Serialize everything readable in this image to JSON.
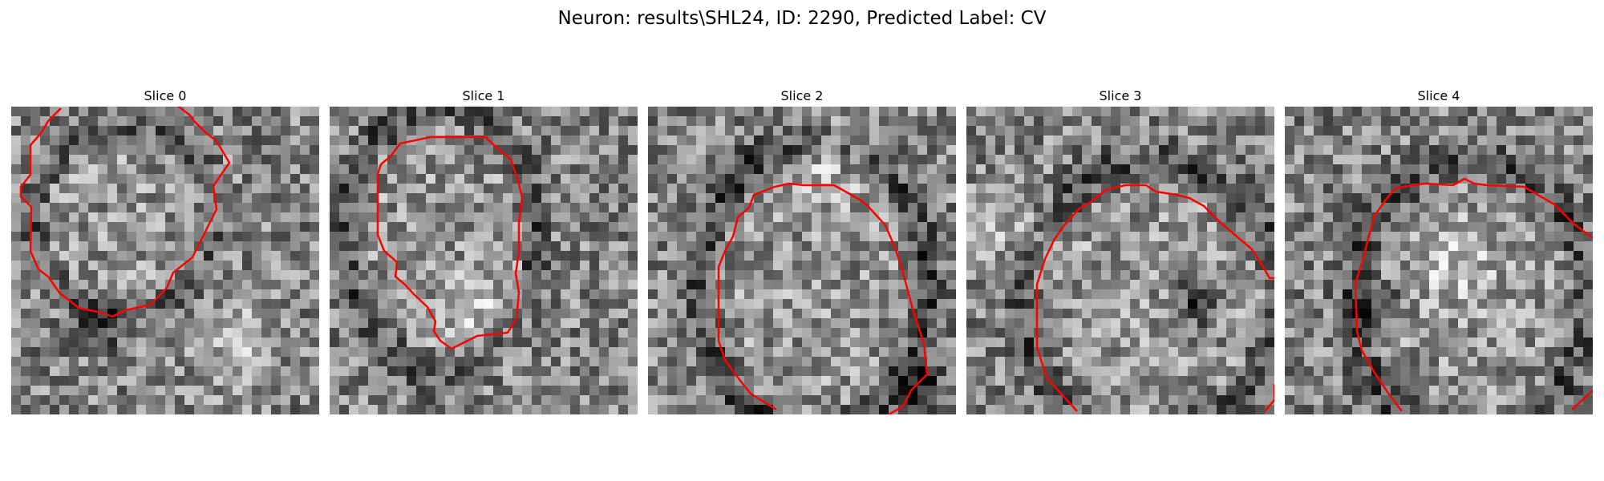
{
  "figure": {
    "title": "Neuron: results\\SHL24, ID: 2290, Predicted Label: CV",
    "contour_color": "#ff0000",
    "colormap": "gray",
    "panels": [
      {
        "title": "Slice 0",
        "seed": 11,
        "center": [
          0.37,
          0.37
        ],
        "radius": [
          0.3,
          0.3
        ],
        "cell_dark": false,
        "ring_strength": 0.55,
        "dark_spot": [
          0.28,
          0.7
        ],
        "bright_spot": [
          0.72,
          0.78
        ]
      },
      {
        "title": "Slice 1",
        "seed": 23,
        "center": [
          0.36,
          0.43
        ],
        "radius": [
          0.31,
          0.44
        ],
        "cell_dark": false,
        "ring_strength": 0.75,
        "dark_spot": null,
        "bright_spot": [
          0.5,
          0.7
        ]
      },
      {
        "title": "Slice 2",
        "seed": 37,
        "center": [
          0.54,
          0.59
        ],
        "radius": [
          0.37,
          0.48
        ],
        "cell_dark": false,
        "ring_strength": 0.85,
        "dark_spot": [
          0.88,
          0.9
        ],
        "bright_spot": [
          0.6,
          0.15
        ]
      },
      {
        "title": "Slice 3",
        "seed": 51,
        "center": [
          0.6,
          0.63
        ],
        "radius": [
          0.42,
          0.45
        ],
        "cell_dark": false,
        "ring_strength": 0.7,
        "dark_spot": [
          0.76,
          0.63
        ],
        "bright_spot": [
          0.15,
          0.4
        ]
      },
      {
        "title": "Slice 4",
        "seed": 67,
        "center": [
          0.6,
          0.63
        ],
        "radius": [
          0.38,
          0.45
        ],
        "cell_dark": false,
        "ring_strength": 0.75,
        "dark_spot": [
          0.3,
          0.65
        ],
        "bright_spot": [
          0.55,
          0.5
        ]
      }
    ]
  }
}
